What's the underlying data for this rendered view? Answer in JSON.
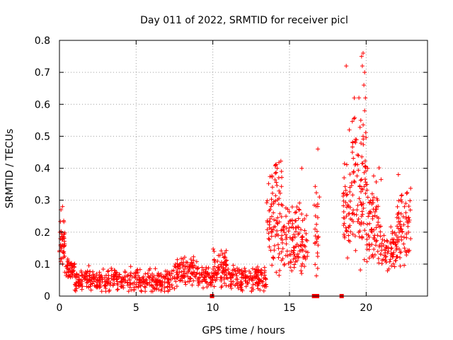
{
  "chart_data": {
    "type": "scatter",
    "title": "Day 011 of 2022, SRMTID for receiver picl",
    "xlabel": "GPS time / hours",
    "ylabel": "SRMTID / TECUs",
    "xlim": [
      0,
      24
    ],
    "ylim": [
      0,
      0.8
    ],
    "xticks": [
      0,
      5,
      10,
      15,
      20
    ],
    "yticks": [
      0,
      0.1,
      0.2,
      0.3,
      0.4,
      0.5,
      0.6,
      0.7,
      0.8
    ],
    "grid": true,
    "marker": "+",
    "color": "#ff0000",
    "segments": [
      {
        "x0": 0.0,
        "x1": 0.35,
        "base": 0.16,
        "spread": 0.07,
        "n": 40
      },
      {
        "x0": 0.35,
        "x1": 1.0,
        "base": 0.085,
        "spread": 0.025,
        "n": 45
      },
      {
        "x0": 1.0,
        "x1": 2.0,
        "base": 0.05,
        "spread": 0.03,
        "n": 70
      },
      {
        "x0": 2.0,
        "x1": 7.5,
        "base": 0.045,
        "spread": 0.03,
        "n": 300
      },
      {
        "x0": 7.5,
        "x1": 9.0,
        "base": 0.075,
        "spread": 0.035,
        "n": 100
      },
      {
        "x0": 9.0,
        "x1": 10.0,
        "base": 0.055,
        "spread": 0.025,
        "n": 60
      },
      {
        "x0": 10.0,
        "x1": 11.0,
        "base": 0.08,
        "spread": 0.05,
        "n": 80
      },
      {
        "x0": 11.0,
        "x1": 13.5,
        "base": 0.05,
        "spread": 0.03,
        "n": 150
      },
      {
        "x0": 13.5,
        "x1": 14.0,
        "base": 0.2,
        "spread": 0.12,
        "n": 40
      },
      {
        "x0": 14.0,
        "x1": 14.5,
        "base": 0.22,
        "spread": 0.15,
        "n": 45
      },
      {
        "x0": 14.5,
        "x1": 16.2,
        "base": 0.17,
        "spread": 0.09,
        "n": 120
      },
      {
        "x0": 16.6,
        "x1": 17.0,
        "base": 0.2,
        "spread": 0.12,
        "n": 25
      },
      {
        "x0": 18.5,
        "x1": 19.0,
        "base": 0.25,
        "spread": 0.12,
        "n": 45
      },
      {
        "x0": 19.0,
        "x1": 20.0,
        "base": 0.32,
        "spread": 0.2,
        "n": 90
      },
      {
        "x0": 20.0,
        "x1": 21.0,
        "base": 0.23,
        "spread": 0.12,
        "n": 80
      },
      {
        "x0": 21.0,
        "x1": 22.0,
        "base": 0.14,
        "spread": 0.05,
        "n": 70
      },
      {
        "x0": 22.0,
        "x1": 22.9,
        "base": 0.21,
        "spread": 0.1,
        "n": 70
      }
    ],
    "extra_points": [
      [
        18.7,
        0.72
      ],
      [
        19.7,
        0.75
      ],
      [
        19.8,
        0.76
      ],
      [
        19.9,
        0.7
      ],
      [
        19.85,
        0.66
      ],
      [
        19.75,
        0.72
      ],
      [
        19.95,
        0.62
      ],
      [
        19.65,
        0.55
      ],
      [
        19.9,
        0.58
      ],
      [
        19.8,
        0.5
      ],
      [
        16.85,
        0.46
      ],
      [
        14.1,
        0.41
      ],
      [
        14.2,
        0.4
      ],
      [
        15.8,
        0.4
      ],
      [
        14.3,
        0.37
      ],
      [
        19.3,
        0.48
      ],
      [
        19.5,
        0.44
      ],
      [
        20.1,
        0.4
      ],
      [
        22.1,
        0.38
      ],
      [
        0.1,
        0.27
      ],
      [
        0.2,
        0.28
      ],
      [
        18.9,
        0.52
      ],
      [
        19.1,
        0.45
      ]
    ],
    "zero_points": [
      9.95,
      16.6,
      16.8,
      18.4
    ]
  }
}
